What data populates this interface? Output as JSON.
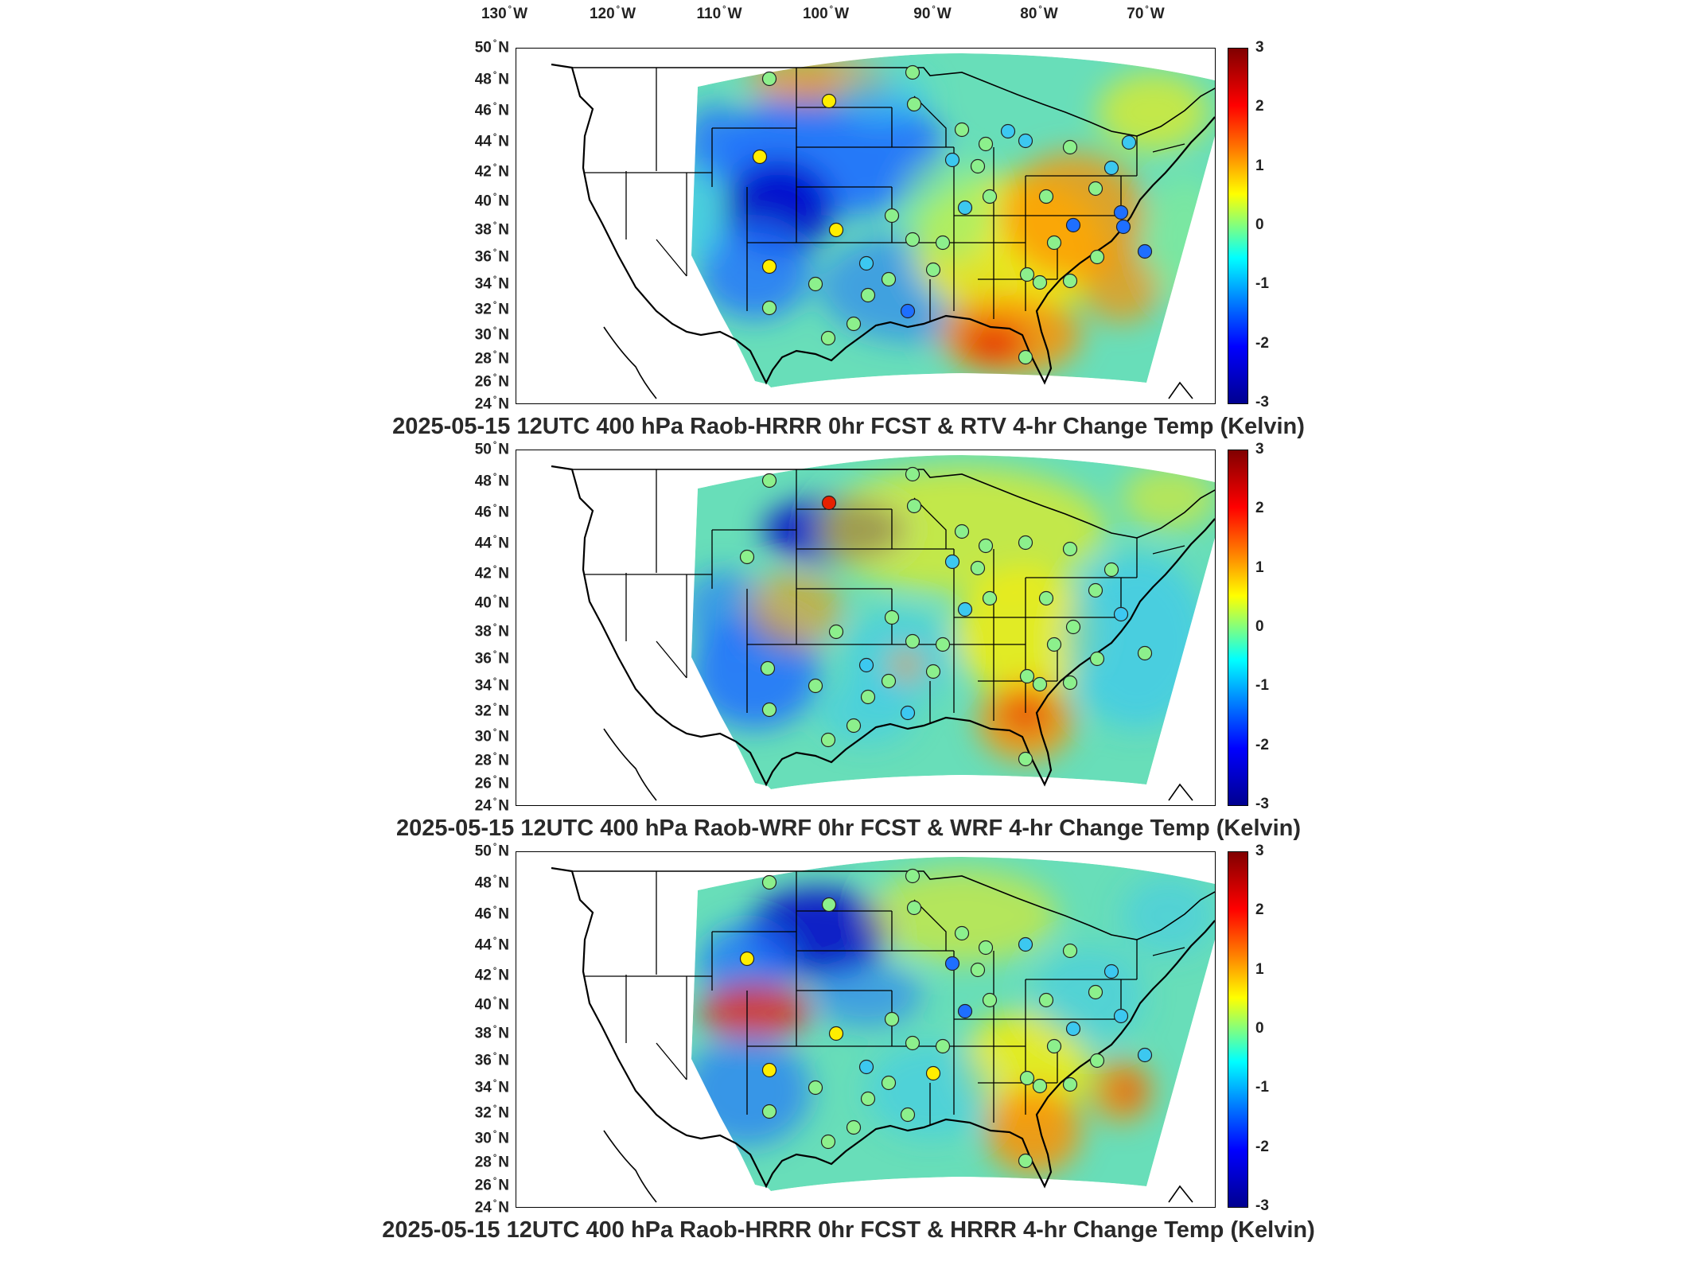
{
  "lon_labels": [
    {
      "deg": "130",
      "hemi": "W"
    },
    {
      "deg": "120",
      "hemi": "W"
    },
    {
      "deg": "110",
      "hemi": "W"
    },
    {
      "deg": "100",
      "hemi": "W"
    },
    {
      "deg": "90",
      "hemi": "W"
    },
    {
      "deg": "80",
      "hemi": "W"
    },
    {
      "deg": "70",
      "hemi": "W"
    }
  ],
  "lat_labels": [
    {
      "deg": "50",
      "hemi": "N"
    },
    {
      "deg": "48",
      "hemi": "N"
    },
    {
      "deg": "46",
      "hemi": "N"
    },
    {
      "deg": "44",
      "hemi": "N"
    },
    {
      "deg": "42",
      "hemi": "N"
    },
    {
      "deg": "40",
      "hemi": "N"
    },
    {
      "deg": "38",
      "hemi": "N"
    },
    {
      "deg": "36",
      "hemi": "N"
    },
    {
      "deg": "34",
      "hemi": "N"
    },
    {
      "deg": "32",
      "hemi": "N"
    },
    {
      "deg": "30",
      "hemi": "N"
    },
    {
      "deg": "28",
      "hemi": "N"
    },
    {
      "deg": "26",
      "hemi": "N"
    },
    {
      "deg": "24",
      "hemi": "N"
    }
  ],
  "colorbar": {
    "ticks": [
      "3",
      "2",
      "1",
      "0",
      "-1",
      "-2",
      "-3"
    ],
    "range": [
      -3,
      3
    ],
    "colormap": "jet"
  },
  "panels": [
    {
      "title": "2025-05-15 12UTC 400 hPa Raob-HRRR 0hr FCST & RTV 4-hr Change Temp (Kelvin)"
    },
    {
      "title": "2025-05-15 12UTC 400 hPa Raob-WRF 0hr FCST & WRF 4-hr Change Temp (Kelvin)"
    },
    {
      "title": "2025-05-15 12UTC 400 hPa Raob-HRRR 0hr FCST & HRRR 4-hr Change Temp (Kelvin)"
    }
  ],
  "colors": {
    "deep_blue": "#0000c8",
    "blue": "#1e6fff",
    "cyan": "#3cc8f0",
    "green": "#8cf08c",
    "yellow": "#ffee00",
    "orange": "#ff9000",
    "red": "#e62000",
    "dark_red": "#800000"
  }
}
